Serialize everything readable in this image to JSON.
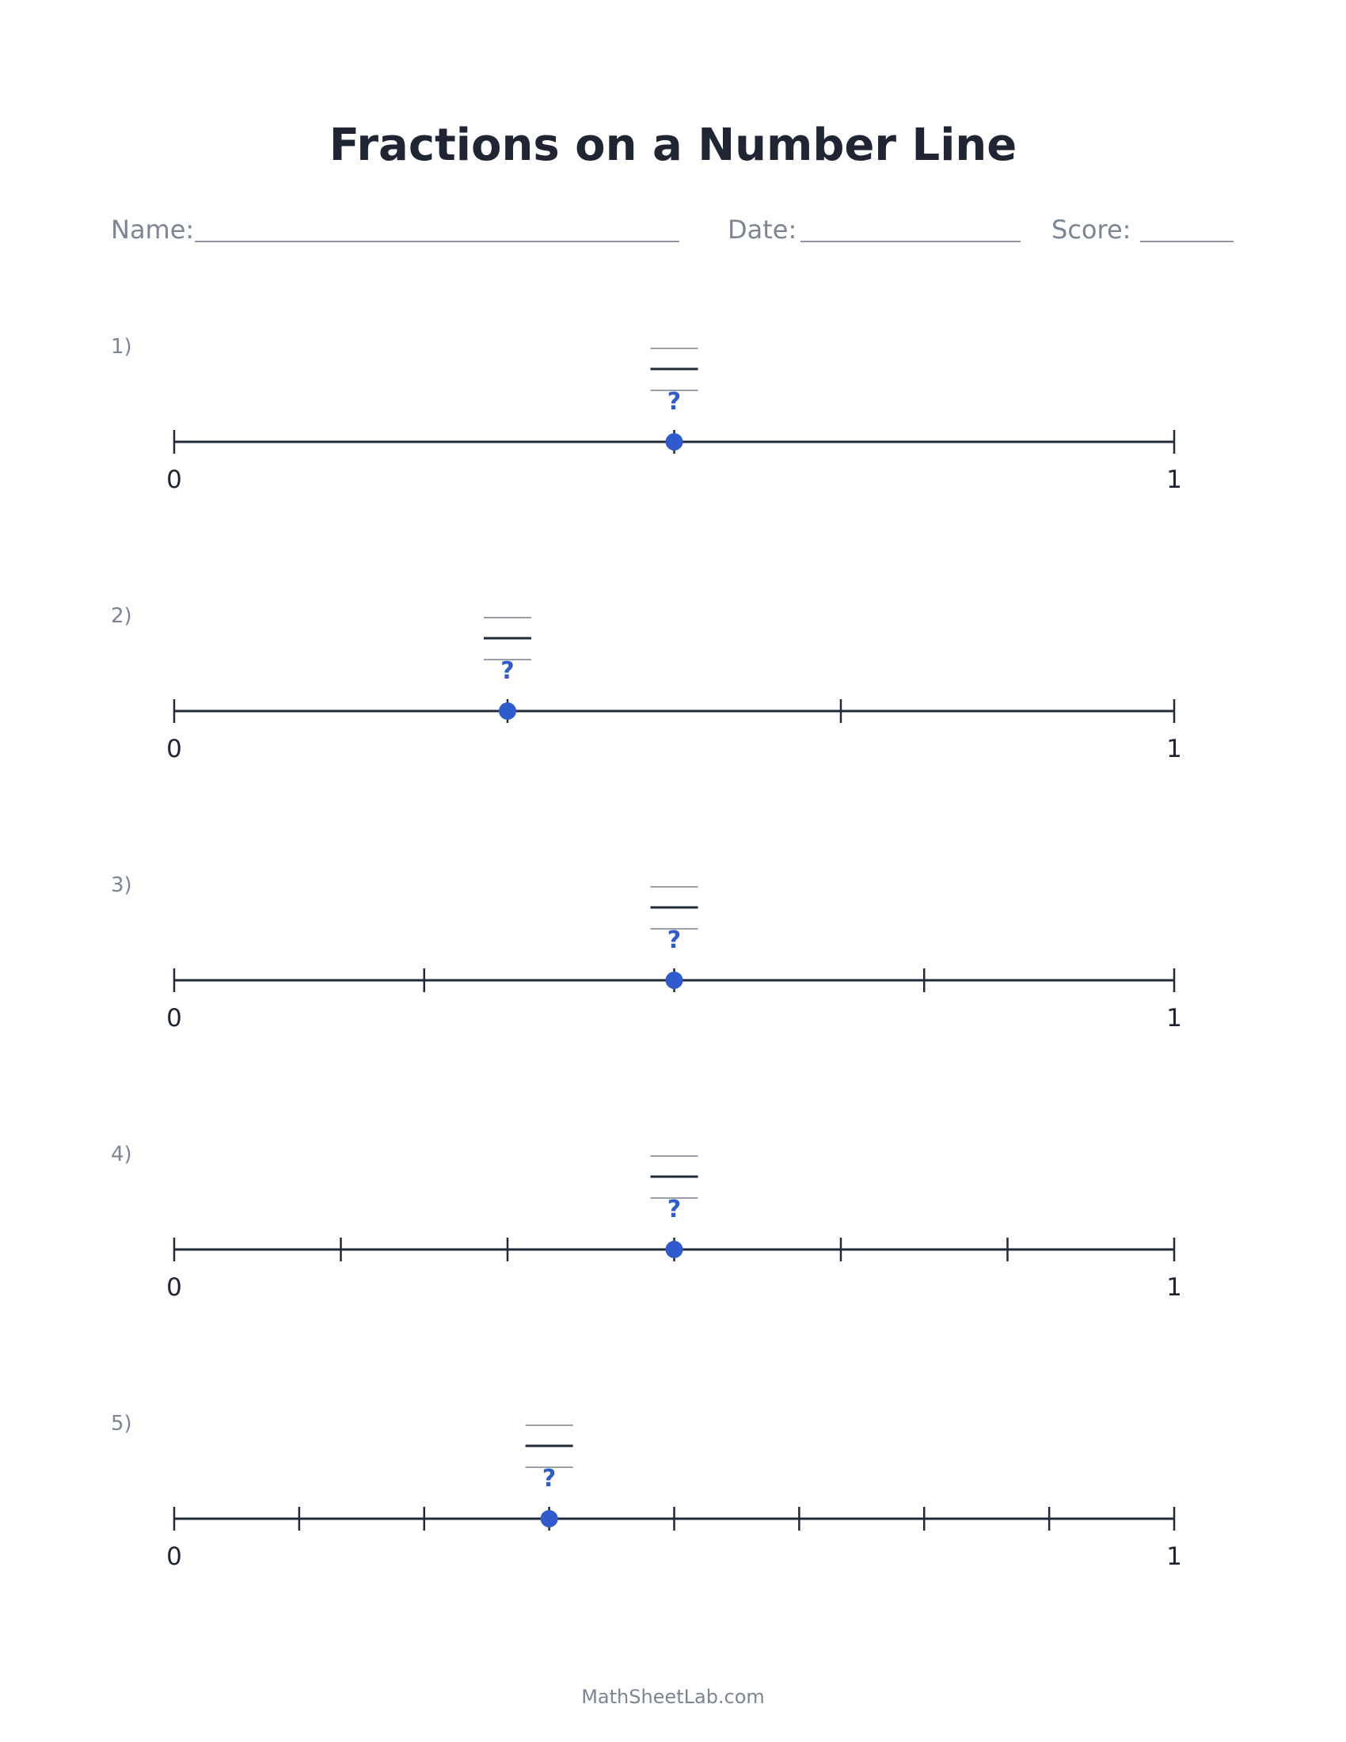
{
  "worksheet": {
    "title": "Fractions on a Number Line",
    "header": {
      "name_label": "Name:",
      "date_label": "Date:",
      "score_label": "Score:"
    },
    "footer": "MathSheetLab.com",
    "colors": {
      "accent": "#2f5bcd",
      "line": "#222a38",
      "muted": "#7c8592",
      "answer_line": "#9aa0a8"
    },
    "problems": [
      {
        "label": "1)",
        "divisions": 2,
        "point_index": 1,
        "start_label": "0",
        "end_label": "1",
        "unknown": "?"
      },
      {
        "label": "2)",
        "divisions": 3,
        "point_index": 1,
        "start_label": "0",
        "end_label": "1",
        "unknown": "?"
      },
      {
        "label": "3)",
        "divisions": 4,
        "point_index": 2,
        "start_label": "0",
        "end_label": "1",
        "unknown": "?"
      },
      {
        "label": "4)",
        "divisions": 6,
        "point_index": 3,
        "start_label": "0",
        "end_label": "1",
        "unknown": "?"
      },
      {
        "label": "5)",
        "divisions": 8,
        "point_index": 3,
        "start_label": "0",
        "end_label": "1",
        "unknown": "?"
      }
    ]
  }
}
